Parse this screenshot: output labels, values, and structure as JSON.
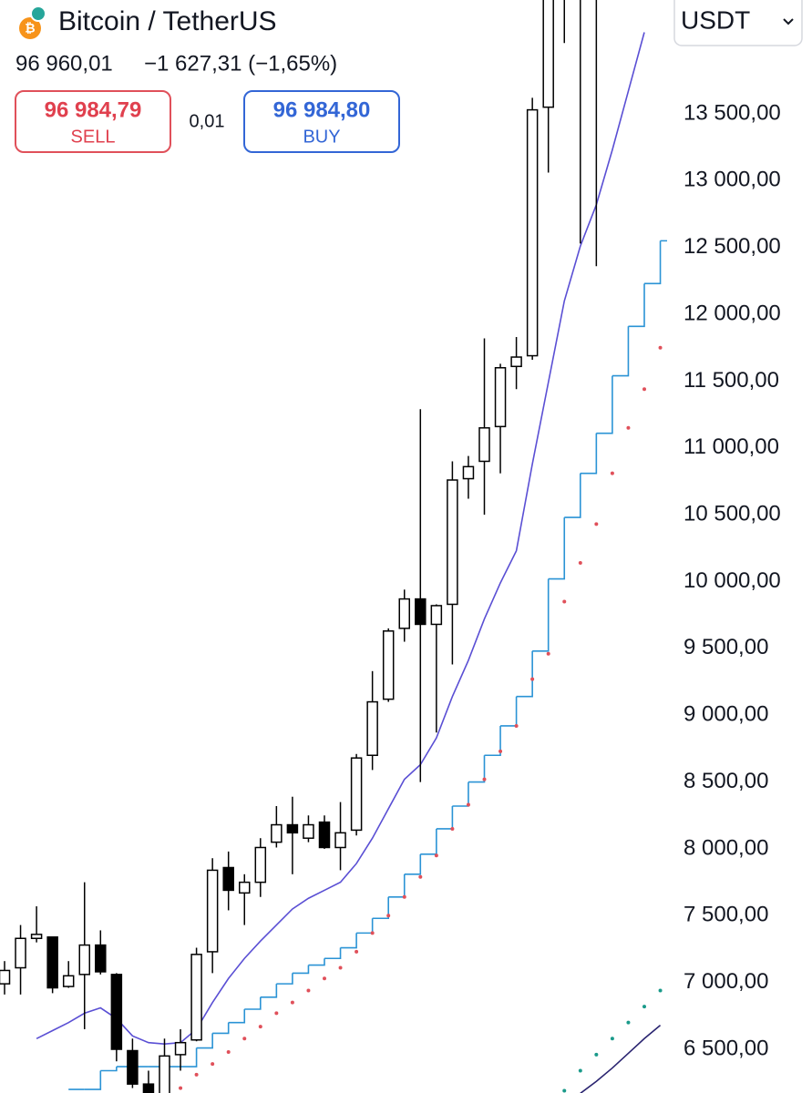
{
  "header": {
    "title": "Bitcoin / TetherUS",
    "price": "96 960,01",
    "change": "−1 627,31 (−1,65%)",
    "sell_price": "96 984,79",
    "sell_label": "SELL",
    "spread": "0,01",
    "buy_price": "96 984,80",
    "buy_label": "BUY",
    "currency": "USDT"
  },
  "chart_data": {
    "type": "candlestick",
    "ylim": [
      6173,
      14352
    ],
    "yticks": [
      {
        "value": 13500,
        "label": "13 500,00"
      },
      {
        "value": 13000,
        "label": "13 000,00"
      },
      {
        "value": 12500,
        "label": "12 500,00"
      },
      {
        "value": 12000,
        "label": "12 000,00"
      },
      {
        "value": 11500,
        "label": "11 500,00"
      },
      {
        "value": 11000,
        "label": "11 000,00"
      },
      {
        "value": 10500,
        "label": "10 500,00"
      },
      {
        "value": 10000,
        "label": "10 000,00"
      },
      {
        "value": 9500,
        "label": "9 500,00"
      },
      {
        "value": 9000,
        "label": "9 000,00"
      },
      {
        "value": 8500,
        "label": "8 500,00"
      },
      {
        "value": 8000,
        "label": "8 000,00"
      },
      {
        "value": 7500,
        "label": "7 500,00"
      },
      {
        "value": 7000,
        "label": "7 000,00"
      },
      {
        "value": 6500,
        "label": "6 500,00"
      }
    ],
    "up_color": "#ffffff",
    "down_color": "#000000",
    "open": [
      6990,
      7110,
      7330,
      7340,
      6970,
      7060,
      7280,
      7060,
      6490,
      6240,
      6150,
      6460,
      6570,
      7230,
      7860,
      7670,
      7750,
      8050,
      8180,
      8080,
      8200,
      8010,
      8140,
      8700,
      9120,
      9650,
      9870,
      9680,
      9830,
      10770,
      10900,
      11160,
      11610,
      11690,
      13550,
      14400,
      14700,
      14500,
      null,
      null,
      null,
      null
    ],
    "high": [
      7160,
      7430,
      7570,
      7340,
      7160,
      7750,
      7390,
      7070,
      6580,
      6340,
      6580,
      6650,
      7260,
      7930,
      7980,
      7810,
      8080,
      8320,
      8390,
      8250,
      8250,
      8350,
      8710,
      9330,
      9650,
      9940,
      11290,
      9830,
      10900,
      10940,
      11820,
      11630,
      11830,
      13620,
      14600,
      14800,
      14800,
      14700,
      null,
      null,
      null,
      null
    ],
    "low": [
      6910,
      6910,
      7300,
      6920,
      6960,
      6650,
      7060,
      6410,
      6210,
      6100,
      6100,
      6340,
      6560,
      7070,
      7540,
      7430,
      7640,
      8010,
      7810,
      8050,
      8000,
      7840,
      8100,
      8590,
      9100,
      9550,
      8500,
      8870,
      9380,
      10620,
      10500,
      10810,
      11440,
      11660,
      13060,
      14030,
      12530,
      12360,
      null,
      null,
      null,
      null
    ],
    "close": [
      7090,
      7330,
      7360,
      6960,
      7050,
      7280,
      7080,
      6500,
      6240,
      6150,
      6450,
      6550,
      7210,
      7840,
      7690,
      7750,
      8010,
      8180,
      8120,
      8180,
      8010,
      8120,
      8680,
      9100,
      9630,
      9870,
      9680,
      9820,
      10760,
      10860,
      11150,
      11600,
      11680,
      13530,
      14500,
      14700,
      14400,
      14400,
      null,
      null,
      null,
      null
    ],
    "overlays": [
      {
        "style": "line",
        "color": "#5a4fd4",
        "values": [
          null,
          null,
          6580,
          6640,
          6700,
          6770,
          6810,
          6730,
          6600,
          6550,
          6540,
          6550,
          6650,
          6850,
          7030,
          7180,
          7310,
          7430,
          7550,
          7630,
          7690,
          7750,
          7890,
          8080,
          8300,
          8520,
          8630,
          8830,
          9140,
          9410,
          9720,
          9990,
          10230,
          10880,
          11490,
          12100,
          12510,
          12820,
          13230,
          13670,
          14110,
          null
        ]
      },
      {
        "style": "step",
        "color": "#2a93d5",
        "values": [
          null,
          null,
          null,
          null,
          6200,
          6200,
          6340,
          6370,
          6370,
          6370,
          6370,
          6370,
          6510,
          6620,
          6700,
          6800,
          6890,
          6990,
          7070,
          7130,
          7180,
          7260,
          7370,
          7480,
          7640,
          7810,
          7960,
          8150,
          8320,
          8500,
          8700,
          8920,
          9140,
          9480,
          10020,
          10480,
          10810,
          11110,
          11540,
          11910,
          12230,
          12550
        ]
      },
      {
        "style": "dots",
        "color": "#e0505a",
        "values": [
          null,
          null,
          null,
          null,
          null,
          null,
          null,
          null,
          null,
          null,
          null,
          6210,
          6310,
          6390,
          6480,
          6580,
          6670,
          6770,
          6850,
          6940,
          7030,
          7110,
          7230,
          7370,
          7500,
          7640,
          7790,
          7950,
          8150,
          8330,
          8520,
          8730,
          8920,
          9270,
          9460,
          9850,
          10140,
          10430,
          10810,
          11150,
          11440,
          11750
        ]
      },
      {
        "style": "dots",
        "color": "#1a9a8a",
        "values": [
          null,
          null,
          null,
          null,
          null,
          null,
          null,
          null,
          null,
          null,
          null,
          null,
          null,
          null,
          null,
          null,
          null,
          null,
          null,
          null,
          null,
          null,
          null,
          null,
          null,
          null,
          null,
          null,
          null,
          null,
          null,
          null,
          null,
          null,
          null,
          6190,
          6340,
          6460,
          6580,
          6700,
          6820,
          6940
        ]
      },
      {
        "style": "line",
        "color": "#2a2470",
        "values": [
          null,
          null,
          null,
          null,
          null,
          null,
          null,
          null,
          null,
          null,
          null,
          null,
          null,
          null,
          null,
          null,
          null,
          null,
          null,
          null,
          null,
          null,
          null,
          null,
          null,
          null,
          null,
          null,
          null,
          null,
          null,
          null,
          null,
          null,
          null,
          null,
          6170,
          6260,
          6360,
          6470,
          6580,
          6680
        ]
      }
    ]
  }
}
